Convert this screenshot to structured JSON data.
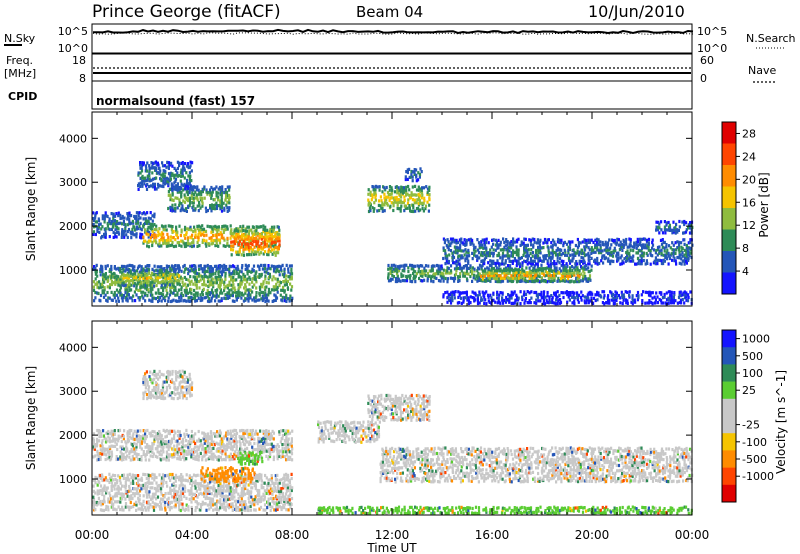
{
  "header": {
    "station": "Prince George (fitACF)",
    "beam": "Beam 04",
    "date": "10/Jun/2010"
  },
  "top_panels": {
    "nsky_label": "N.Sky",
    "nsky_ticks": [
      "10^5",
      "10^0"
    ],
    "nsearch_label": "N.Search",
    "nsearch_ticks": [
      "10^5",
      "10^0"
    ],
    "freq_label": "Freq.",
    "freq_unit": "[MHz]",
    "freq_ticks": [
      "18",
      "8"
    ],
    "nave_label": "Nave",
    "nave_ticks": [
      "60",
      "0"
    ],
    "cpid_label": "CPID",
    "cpid_text": "normalsound (fast) 157"
  },
  "colors": {
    "power": [
      "#1414ff",
      "#2456b8",
      "#2e8b57",
      "#8fbc3f",
      "#f5c400",
      "#ff8c00",
      "#ff4500",
      "#e00000"
    ],
    "velocity": [
      "#1414ff",
      "#2456b8",
      "#2e8b57",
      "#5acd32",
      "#c8c8c8",
      "#c8c8c8",
      "#f5c400",
      "#ff8c00",
      "#ff4500",
      "#e00000"
    ]
  },
  "chart_data": [
    {
      "type": "heatmap",
      "name_hint": "power-panel",
      "ylabel": "Slant Range [km]",
      "xlim": [
        0,
        24
      ],
      "ylim": [
        180,
        4600
      ],
      "yticks": [
        "1000",
        "2000",
        "3000",
        "4000"
      ],
      "colorbar": {
        "label": "Power [dB]",
        "ticks": [
          "4",
          "8",
          "12",
          "16",
          "20",
          "24",
          "28"
        ],
        "range": [
          0,
          30
        ]
      },
      "regions": [
        {
          "t0": 0.0,
          "t1": 8.0,
          "r0": 250,
          "r1": 1100,
          "v": 12
        },
        {
          "t0": 0.0,
          "t1": 2.5,
          "r0": 1700,
          "r1": 2300,
          "v": 8
        },
        {
          "t0": 2.0,
          "t1": 7.5,
          "r0": 1500,
          "r1": 2000,
          "v": 20
        },
        {
          "t0": 5.5,
          "t1": 7.5,
          "r0": 1300,
          "r1": 1900,
          "v": 24
        },
        {
          "t0": 1.8,
          "t1": 4.0,
          "r0": 2800,
          "r1": 3450,
          "v": 8
        },
        {
          "t0": 3.0,
          "t1": 5.5,
          "r0": 2300,
          "r1": 2900,
          "v": 12
        },
        {
          "t0": 1.0,
          "t1": 3.5,
          "r0": 600,
          "r1": 1000,
          "v": 16
        },
        {
          "t0": 11.0,
          "t1": 13.5,
          "r0": 2300,
          "r1": 2900,
          "v": 16
        },
        {
          "t0": 12.5,
          "t1": 13.2,
          "r0": 3000,
          "r1": 3300,
          "v": 8
        },
        {
          "t0": 11.8,
          "t1": 20.0,
          "r0": 700,
          "r1": 1100,
          "v": 12
        },
        {
          "t0": 14.0,
          "t1": 24.0,
          "r0": 1100,
          "r1": 1700,
          "v": 8
        },
        {
          "t0": 15.5,
          "t1": 19.5,
          "r0": 700,
          "r1": 1000,
          "v": 20
        },
        {
          "t0": 14.0,
          "t1": 24.0,
          "r0": 200,
          "r1": 500,
          "v": 4
        },
        {
          "t0": 22.5,
          "t1": 24.0,
          "r0": 1800,
          "r1": 2100,
          "v": 8
        }
      ]
    },
    {
      "type": "heatmap",
      "name_hint": "velocity-panel",
      "ylabel": "Slant Range [km]",
      "xlabel": "Time UT",
      "xlim": [
        0,
        24
      ],
      "ylim": [
        180,
        4600
      ],
      "xticks": [
        "00:00",
        "04:00",
        "08:00",
        "12:00",
        "16:00",
        "20:00",
        "00:00"
      ],
      "yticks": [
        "1000",
        "2000",
        "3000",
        "4000"
      ],
      "colorbar": {
        "label": "Velocity [m s^-1]",
        "ticks": [
          "1000",
          "500",
          "100",
          "25",
          "-25",
          "-100",
          "-500",
          "-1000"
        ],
        "range": [
          -1000,
          1000
        ]
      },
      "regions": [
        {
          "t0": 0.0,
          "t1": 8.0,
          "r0": 1400,
          "r1": 2100,
          "v": 0
        },
        {
          "t0": 0.0,
          "t1": 8.0,
          "r0": 250,
          "r1": 1100,
          "v": 0
        },
        {
          "t0": 4.3,
          "t1": 6.5,
          "r0": 900,
          "r1": 1250,
          "v": -400
        },
        {
          "t0": 5.8,
          "t1": 6.8,
          "r0": 1300,
          "r1": 1600,
          "v": 80
        },
        {
          "t0": 2.0,
          "t1": 4.0,
          "r0": 2800,
          "r1": 3450,
          "v": 0
        },
        {
          "t0": 9.0,
          "t1": 11.5,
          "r0": 1800,
          "r1": 2300,
          "v": 0
        },
        {
          "t0": 11.0,
          "t1": 13.5,
          "r0": 2300,
          "r1": 2900,
          "v": 0
        },
        {
          "t0": 11.5,
          "t1": 24.0,
          "r0": 900,
          "r1": 1700,
          "v": 0
        },
        {
          "t0": 9.0,
          "t1": 24.0,
          "r0": 180,
          "r1": 350,
          "v": 60
        }
      ]
    }
  ]
}
